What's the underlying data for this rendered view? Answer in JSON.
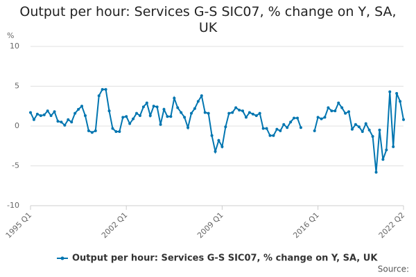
{
  "chart_data": {
    "type": "line",
    "title": "Output per hour: Services G-S SIC07, % change on Y, SA, UK",
    "y_label": "%",
    "source": "Source:",
    "categories": [
      "1995 Q1",
      null,
      null,
      null,
      null,
      null,
      null,
      null,
      null,
      null,
      null,
      null,
      null,
      null,
      null,
      null,
      null,
      null,
      null,
      null,
      null,
      null,
      null,
      null,
      null,
      null,
      null,
      null,
      "2002 Q1",
      null,
      null,
      null,
      null,
      null,
      null,
      null,
      null,
      null,
      null,
      null,
      null,
      null,
      null,
      null,
      null,
      null,
      null,
      null,
      null,
      null,
      null,
      null,
      null,
      null,
      null,
      null,
      "2009 Q1",
      null,
      null,
      null,
      null,
      null,
      null,
      null,
      null,
      null,
      null,
      null,
      null,
      null,
      null,
      null,
      null,
      null,
      null,
      null,
      null,
      null,
      null,
      null,
      null,
      null,
      null,
      null,
      "2016 Q1",
      null,
      null,
      null,
      null,
      null,
      null,
      null,
      null,
      null,
      null,
      null,
      null,
      null,
      null,
      null,
      null,
      null,
      null,
      null,
      null,
      null,
      null,
      null,
      null,
      "2022 Q2"
    ],
    "series": [
      {
        "name": "Output per hour: Services G-S SIC07, % change on Y, SA, UK",
        "color": "#0075b0",
        "values": [
          1.7,
          0.8,
          1.5,
          1.3,
          1.4,
          1.9,
          1.3,
          1.8,
          0.6,
          0.5,
          0.1,
          0.8,
          0.5,
          1.6,
          2.1,
          2.5,
          1.3,
          -0.6,
          -0.8,
          -0.6,
          3.8,
          4.6,
          4.6,
          1.9,
          -0.3,
          -0.7,
          -0.7,
          1.1,
          1.2,
          0.3,
          0.9,
          1.6,
          1.3,
          2.4,
          2.9,
          1.3,
          2.5,
          2.4,
          0.2,
          2.1,
          1.2,
          1.2,
          3.5,
          2.3,
          1.7,
          1.1,
          -0.2,
          1.6,
          2.2,
          3.1,
          3.8,
          1.7,
          1.6,
          -1.2,
          -3.2,
          -1.8,
          -2.6,
          -0.1,
          1.6,
          1.7,
          2.3,
          2.0,
          1.9,
          1.1,
          1.7,
          1.5,
          1.3,
          1.6,
          -0.3,
          -0.3,
          -1.2,
          -1.2,
          -0.4,
          -0.6,
          0.2,
          -0.2,
          0.5,
          1.0,
          1.0,
          -0.2,
          null,
          null,
          null,
          -0.6,
          1.1,
          0.9,
          1.1,
          2.3,
          1.9,
          1.9,
          2.9,
          2.3,
          1.6,
          1.8,
          -0.4,
          0.2,
          -0.1,
          -0.7,
          0.3,
          -0.5,
          -1.3,
          -5.8,
          -0.5,
          -4.2,
          -3.0,
          4.3,
          -2.6,
          4.1,
          3.1,
          0.8
        ]
      }
    ],
    "ylim": [
      -10,
      10
    ],
    "yticks": [
      -10,
      -5,
      0,
      5,
      10
    ],
    "grid": true,
    "legend": "bottom"
  }
}
